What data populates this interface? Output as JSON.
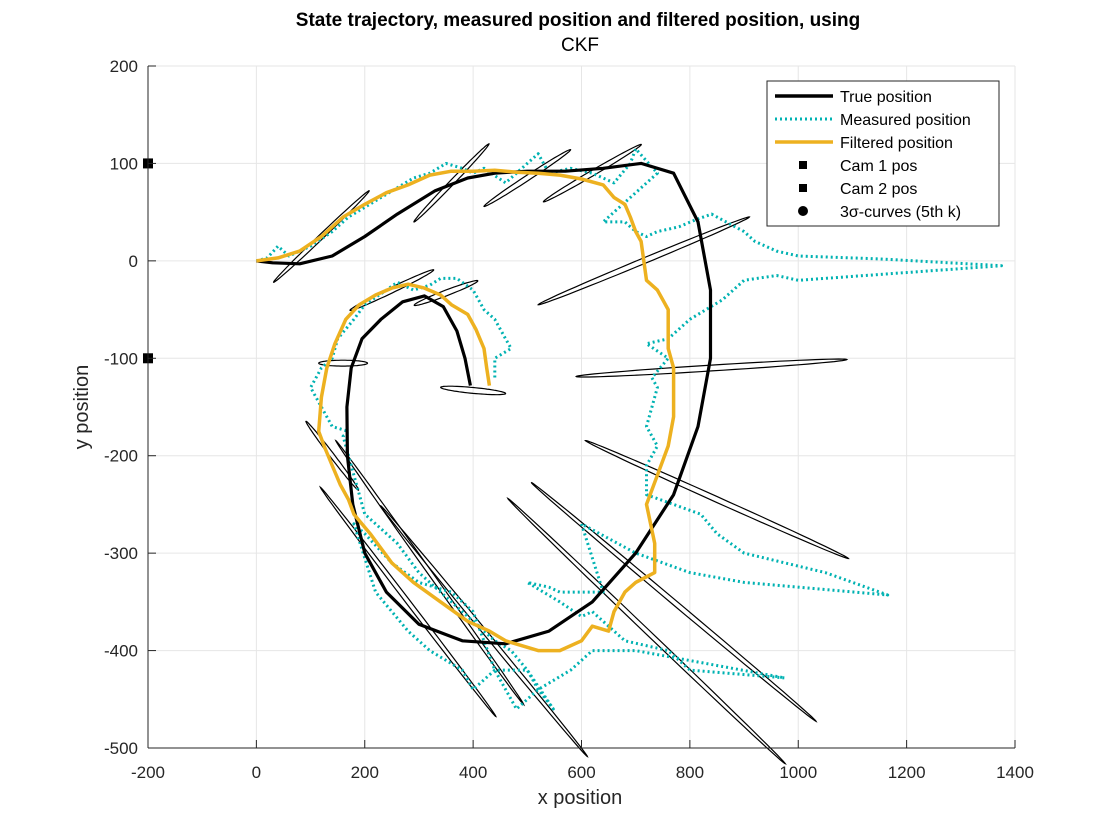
{
  "chart_data": {
    "type": "line",
    "title": "State trajectory, measured position and filtered position, using",
    "subtitle": "CKF",
    "xlabel": "x position",
    "ylabel": "y position",
    "xlim": [
      -200,
      1400
    ],
    "ylim": [
      -500,
      200
    ],
    "xticks": [
      -200,
      0,
      200,
      400,
      600,
      800,
      1000,
      1200,
      1400
    ],
    "yticks": [
      -500,
      -400,
      -300,
      -200,
      -100,
      0,
      100,
      200
    ],
    "grid": true,
    "legend_position": "top-right",
    "legend": [
      {
        "label": "True position",
        "kind": "line",
        "color": "#000000"
      },
      {
        "label": "Measured position",
        "kind": "dotted",
        "color": "#00b2b2"
      },
      {
        "label": "Filtered position",
        "kind": "line",
        "color": "#edb120"
      },
      {
        "label": "Cam 1 pos",
        "kind": "square",
        "color": "#000000"
      },
      {
        "label": "Cam 2 pos",
        "kind": "square",
        "color": "#000000"
      },
      {
        "label": "3σ-curves (5th k)",
        "kind": "circle",
        "color": "#000000"
      }
    ],
    "series": [
      {
        "name": "True position",
        "color": "#000000",
        "points": [
          [
            395,
            -128
          ],
          [
            385,
            -100
          ],
          [
            370,
            -72
          ],
          [
            345,
            -47
          ],
          [
            310,
            -36
          ],
          [
            270,
            -42
          ],
          [
            230,
            -60
          ],
          [
            195,
            -80
          ],
          [
            175,
            -110
          ],
          [
            167,
            -150
          ],
          [
            168,
            -200
          ],
          [
            178,
            -250
          ],
          [
            200,
            -300
          ],
          [
            240,
            -340
          ],
          [
            300,
            -373
          ],
          [
            380,
            -390
          ],
          [
            460,
            -393
          ],
          [
            540,
            -380
          ],
          [
            620,
            -350
          ],
          [
            700,
            -300
          ],
          [
            770,
            -240
          ],
          [
            815,
            -170
          ],
          [
            838,
            -100
          ],
          [
            838,
            -30
          ],
          [
            815,
            40
          ],
          [
            770,
            90
          ],
          [
            710,
            100
          ],
          [
            640,
            95
          ],
          [
            570,
            92
          ],
          [
            500,
            92
          ],
          [
            440,
            90
          ],
          [
            390,
            85
          ],
          [
            330,
            72
          ],
          [
            260,
            48
          ],
          [
            200,
            25
          ],
          [
            140,
            5
          ],
          [
            80,
            -3
          ],
          [
            30,
            -2
          ],
          [
            0,
            0
          ]
        ]
      },
      {
        "name": "Measured position",
        "color": "#00b2b2",
        "points": [
          [
            0,
            0
          ],
          [
            20,
            3
          ],
          [
            40,
            15
          ],
          [
            60,
            5
          ],
          [
            100,
            15
          ],
          [
            140,
            30
          ],
          [
            170,
            45
          ],
          [
            200,
            55
          ],
          [
            230,
            65
          ],
          [
            260,
            75
          ],
          [
            290,
            85
          ],
          [
            320,
            90
          ],
          [
            350,
            100
          ],
          [
            380,
            95
          ],
          [
            400,
            90
          ],
          [
            420,
            95
          ],
          [
            460,
            80
          ],
          [
            500,
            100
          ],
          [
            520,
            110
          ],
          [
            540,
            90
          ],
          [
            580,
            95
          ],
          [
            620,
            90
          ],
          [
            660,
            80
          ],
          [
            690,
            100
          ],
          [
            700,
            115
          ],
          [
            740,
            90
          ],
          [
            700,
            70
          ],
          [
            680,
            60
          ],
          [
            660,
            50
          ],
          [
            640,
            40
          ],
          [
            680,
            40
          ],
          [
            700,
            30
          ],
          [
            720,
            25
          ],
          [
            740,
            30
          ],
          [
            780,
            35
          ],
          [
            810,
            42
          ],
          [
            840,
            48
          ],
          [
            900,
            30
          ],
          [
            920,
            20
          ],
          [
            960,
            10
          ],
          [
            1000,
            5
          ],
          [
            1150,
            2
          ],
          [
            1375,
            -5
          ],
          [
            1000,
            -20
          ],
          [
            960,
            -15
          ],
          [
            900,
            -20
          ],
          [
            860,
            -40
          ],
          [
            800,
            -60
          ],
          [
            760,
            -80
          ],
          [
            720,
            -85
          ],
          [
            760,
            -100
          ],
          [
            730,
            -120
          ],
          [
            740,
            -130
          ],
          [
            720,
            -170
          ],
          [
            740,
            -190
          ],
          [
            720,
            -210
          ],
          [
            720,
            -240
          ],
          [
            820,
            -260
          ],
          [
            850,
            -280
          ],
          [
            900,
            -300
          ],
          [
            1050,
            -320
          ],
          [
            1165,
            -343
          ],
          [
            900,
            -330
          ],
          [
            800,
            -320
          ],
          [
            700,
            -300
          ],
          [
            600,
            -270
          ],
          [
            640,
            -340
          ],
          [
            580,
            -340
          ],
          [
            560,
            -340
          ],
          [
            540,
            -335
          ],
          [
            500,
            -330
          ],
          [
            560,
            -350
          ],
          [
            600,
            -365
          ],
          [
            620,
            -360
          ],
          [
            680,
            -390
          ],
          [
            760,
            -400
          ],
          [
            800,
            -420
          ],
          [
            975,
            -428
          ],
          [
            700,
            -400
          ],
          [
            620,
            -400
          ],
          [
            580,
            -420
          ],
          [
            520,
            -440
          ],
          [
            480,
            -460
          ],
          [
            440,
            -420
          ],
          [
            400,
            -360
          ],
          [
            360,
            -340
          ],
          [
            300,
            -330
          ],
          [
            250,
            -310
          ],
          [
            200,
            -280
          ],
          [
            180,
            -270
          ],
          [
            220,
            -340
          ],
          [
            280,
            -380
          ],
          [
            320,
            -400
          ],
          [
            380,
            -420
          ],
          [
            400,
            -440
          ],
          [
            440,
            -420
          ],
          [
            480,
            -420
          ],
          [
            500,
            -420
          ],
          [
            520,
            -440
          ],
          [
            548,
            -460
          ],
          [
            500,
            -420
          ],
          [
            470,
            -400
          ],
          [
            440,
            -390
          ],
          [
            420,
            -380
          ],
          [
            380,
            -360
          ],
          [
            340,
            -340
          ],
          [
            300,
            -320
          ],
          [
            260,
            -290
          ],
          [
            200,
            -260
          ],
          [
            180,
            -220
          ],
          [
            170,
            -200
          ],
          [
            160,
            -180
          ],
          [
            170,
            -175
          ],
          [
            140,
            -170
          ],
          [
            120,
            -150
          ],
          [
            100,
            -130
          ],
          [
            120,
            -110
          ],
          [
            140,
            -100
          ],
          [
            150,
            -80
          ],
          [
            180,
            -60
          ],
          [
            200,
            -45
          ],
          [
            240,
            -30
          ],
          [
            260,
            -22
          ],
          [
            290,
            -30
          ],
          [
            320,
            -25
          ],
          [
            340,
            -18
          ],
          [
            370,
            -18
          ],
          [
            400,
            -30
          ],
          [
            420,
            -50
          ],
          [
            440,
            -60
          ],
          [
            460,
            -80
          ],
          [
            470,
            -90
          ],
          [
            440,
            -100
          ],
          [
            440,
            -120
          ]
        ]
      },
      {
        "name": "Filtered position",
        "color": "#edb120",
        "points": [
          [
            0,
            0
          ],
          [
            40,
            3
          ],
          [
            80,
            10
          ],
          [
            120,
            25
          ],
          [
            160,
            45
          ],
          [
            200,
            58
          ],
          [
            240,
            70
          ],
          [
            280,
            78
          ],
          [
            320,
            88
          ],
          [
            360,
            92
          ],
          [
            400,
            92
          ],
          [
            440,
            93
          ],
          [
            480,
            91
          ],
          [
            520,
            90
          ],
          [
            560,
            88
          ],
          [
            600,
            84
          ],
          [
            640,
            78
          ],
          [
            660,
            65
          ],
          [
            680,
            58
          ],
          [
            690,
            45
          ],
          [
            700,
            30
          ],
          [
            710,
            20
          ],
          [
            715,
            0
          ],
          [
            720,
            -20
          ],
          [
            740,
            -30
          ],
          [
            750,
            -40
          ],
          [
            760,
            -50
          ],
          [
            760,
            -70
          ],
          [
            760,
            -90
          ],
          [
            770,
            -110
          ],
          [
            770,
            -130
          ],
          [
            770,
            -160
          ],
          [
            760,
            -190
          ],
          [
            740,
            -220
          ],
          [
            720,
            -250
          ],
          [
            735,
            -290
          ],
          [
            735,
            -320
          ],
          [
            700,
            -330
          ],
          [
            680,
            -340
          ],
          [
            660,
            -360
          ],
          [
            650,
            -380
          ],
          [
            620,
            -375
          ],
          [
            600,
            -390
          ],
          [
            560,
            -400
          ],
          [
            520,
            -400
          ],
          [
            490,
            -395
          ],
          [
            460,
            -390
          ],
          [
            430,
            -380
          ],
          [
            390,
            -370
          ],
          [
            340,
            -350
          ],
          [
            290,
            -330
          ],
          [
            250,
            -310
          ],
          [
            210,
            -280
          ],
          [
            180,
            -260
          ],
          [
            170,
            -245
          ],
          [
            155,
            -230
          ],
          [
            140,
            -210
          ],
          [
            125,
            -190
          ],
          [
            115,
            -175
          ],
          [
            120,
            -140
          ],
          [
            130,
            -110
          ],
          [
            145,
            -85
          ],
          [
            165,
            -60
          ],
          [
            190,
            -45
          ],
          [
            220,
            -35
          ],
          [
            250,
            -28
          ],
          [
            280,
            -24
          ],
          [
            310,
            -28
          ],
          [
            340,
            -35
          ],
          [
            360,
            -45
          ],
          [
            390,
            -55
          ],
          [
            405,
            -70
          ],
          [
            420,
            -90
          ],
          [
            425,
            -110
          ],
          [
            430,
            -128
          ]
        ]
      }
    ],
    "cameras": [
      {
        "name": "Cam 1 pos",
        "x": -200,
        "y": 100
      },
      {
        "name": "Cam 2 pos",
        "x": -200,
        "y": -100
      }
    ],
    "ellipses": [
      {
        "cx": 120,
        "cy": 25,
        "a": 100,
        "b": 3,
        "angle": 28
      },
      {
        "cx": 360,
        "cy": 80,
        "a": 80,
        "b": 3,
        "angle": 30
      },
      {
        "cx": 500,
        "cy": 85,
        "a": 85,
        "b": 3,
        "angle": 20
      },
      {
        "cx": 620,
        "cy": 90,
        "a": 95,
        "b": 3,
        "angle": 18
      },
      {
        "cx": 715,
        "cy": 0,
        "a": 200,
        "b": 3,
        "angle": 13
      },
      {
        "cx": 840,
        "cy": -110,
        "a": 250,
        "b": 3,
        "angle": 2
      },
      {
        "cx": 850,
        "cy": -245,
        "a": 250,
        "b": 3,
        "angle": -14
      },
      {
        "cx": 770,
        "cy": -350,
        "a": 290,
        "b": 3,
        "angle": -25
      },
      {
        "cx": 720,
        "cy": -380,
        "a": 290,
        "b": 3,
        "angle": -28
      },
      {
        "cx": 420,
        "cy": -380,
        "a": 230,
        "b": 3,
        "angle": -34
      },
      {
        "cx": 320,
        "cy": -320,
        "a": 220,
        "b": 3,
        "angle": -38
      },
      {
        "cx": 280,
        "cy": -350,
        "a": 200,
        "b": 3,
        "angle": -36
      },
      {
        "cx": 140,
        "cy": -200,
        "a": 60,
        "b": 3,
        "angle": -36
      },
      {
        "cx": 160,
        "cy": -105,
        "a": 45,
        "b": 3,
        "angle": 0
      },
      {
        "cx": 250,
        "cy": -30,
        "a": 80,
        "b": 3,
        "angle": 15
      },
      {
        "cx": 350,
        "cy": -33,
        "a": 60,
        "b": 3,
        "angle": 12
      },
      {
        "cx": 400,
        "cy": -133,
        "a": 60,
        "b": 3,
        "angle": -3
      }
    ]
  }
}
